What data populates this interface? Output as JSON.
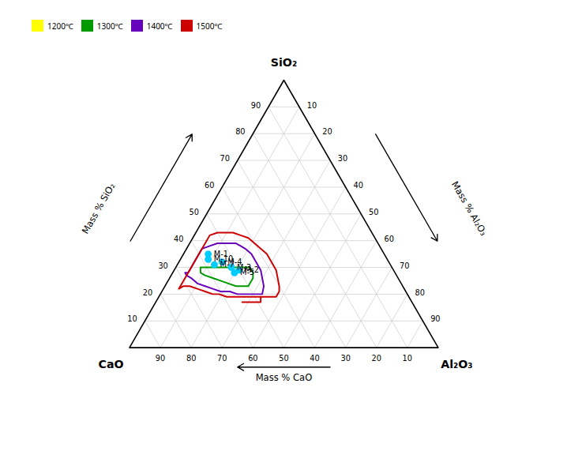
{
  "chart_data": {
    "type": "ternary",
    "components": [
      {
        "label": "CaO",
        "axis_label": "Mass % CaO",
        "lim": [
          0,
          100
        ],
        "ticks": [
          10,
          20,
          30,
          40,
          50,
          60,
          70,
          80,
          90
        ]
      },
      {
        "label": "Al₂O₃",
        "axis_label": "Mass % Al₂O₃",
        "lim": [
          0,
          100
        ],
        "ticks": [
          10,
          20,
          30,
          40,
          50,
          60,
          70,
          80,
          90
        ]
      },
      {
        "label": "SiO₂",
        "axis_label": "Mass % SiO₂",
        "lim": [
          0,
          100
        ],
        "ticks": [
          10,
          20,
          30,
          40,
          50,
          60,
          70,
          80,
          90
        ]
      }
    ],
    "grid": true,
    "legend": "top",
    "series": [
      {
        "name": "1200℃",
        "color": "#ffff00",
        "type": "line",
        "values": []
      },
      {
        "name": "1300℃",
        "color": "#009900",
        "type": "line",
        "values": [
          [
            62,
            8,
            30
          ],
          [
            60,
            10,
            30
          ],
          [
            57,
            13,
            30
          ],
          [
            54,
            16,
            30
          ],
          [
            52,
            18,
            30
          ],
          [
            50,
            20,
            30
          ],
          [
            48,
            22,
            30
          ],
          [
            47,
            23,
            30
          ],
          [
            46,
            24,
            30
          ],
          [
            46,
            26,
            28
          ],
          [
            47,
            27,
            26
          ],
          [
            48,
            27,
            25
          ],
          [
            49,
            27,
            24
          ],
          [
            50,
            27,
            23
          ],
          [
            52,
            25,
            23
          ],
          [
            54,
            23,
            23
          ],
          [
            56,
            20,
            24
          ],
          [
            58,
            17,
            25
          ],
          [
            60,
            14,
            26
          ],
          [
            62,
            11,
            27
          ],
          [
            63,
            9,
            28
          ],
          [
            62,
            8,
            30
          ]
        ]
      },
      {
        "name": "1400℃",
        "color": "#6600bb",
        "type": "line",
        "values": [
          [
            68,
            4,
            28
          ],
          [
            67,
            5,
            28
          ],
          [
            65,
            5,
            30
          ],
          [
            62,
            5,
            33
          ],
          [
            58,
            5,
            37
          ],
          [
            55,
            7,
            38
          ],
          [
            52,
            9,
            39
          ],
          [
            50,
            11,
            39
          ],
          [
            48,
            13,
            39
          ],
          [
            46,
            15,
            39
          ],
          [
            45,
            17,
            38
          ],
          [
            44,
            19,
            37
          ],
          [
            43,
            22,
            35
          ],
          [
            43,
            25,
            32
          ],
          [
            43,
            28,
            29
          ],
          [
            44,
            30,
            26
          ],
          [
            45,
            32,
            23
          ],
          [
            47,
            33,
            20
          ],
          [
            49,
            31,
            20
          ],
          [
            51,
            29,
            20
          ],
          [
            53,
            27,
            20
          ],
          [
            55,
            25,
            20
          ],
          [
            57,
            22,
            21
          ],
          [
            60,
            19,
            21
          ],
          [
            62,
            16,
            22
          ],
          [
            64,
            13,
            23
          ],
          [
            66,
            10,
            24
          ],
          [
            67,
            7,
            26
          ],
          [
            68,
            5,
            27
          ],
          [
            68,
            4,
            28
          ]
        ]
      },
      {
        "name": "1500℃",
        "color": "#cc0000",
        "type": "line",
        "values": [
          [
            73,
            5,
            22
          ],
          [
            70,
            5,
            25
          ],
          [
            66,
            5,
            29
          ],
          [
            62,
            5,
            33
          ],
          [
            57,
            5,
            38
          ],
          [
            53,
            5,
            42
          ],
          [
            50,
            7,
            43
          ],
          [
            47,
            10,
            43
          ],
          [
            45,
            12,
            43
          ],
          [
            43,
            15,
            42
          ],
          [
            41,
            18,
            41
          ],
          [
            40,
            21,
            39
          ],
          [
            39,
            24,
            37
          ],
          [
            38,
            27,
            35
          ],
          [
            38,
            30,
            32
          ],
          [
            38,
            33,
            29
          ],
          [
            39,
            35,
            26
          ],
          [
            40,
            37,
            23
          ],
          [
            41,
            38,
            21
          ],
          [
            43,
            38,
            19
          ],
          [
            45,
            36,
            19
          ],
          [
            47,
            34,
            19
          ],
          [
            49,
            32,
            19
          ],
          [
            51,
            30,
            19
          ],
          [
            53,
            28,
            19
          ],
          [
            55,
            26,
            19
          ],
          [
            57,
            24,
            19
          ],
          [
            59,
            22,
            19
          ],
          [
            61,
            19,
            20
          ],
          [
            63,
            17,
            20
          ],
          [
            65,
            14,
            21
          ],
          [
            67,
            11,
            22
          ],
          [
            69,
            8,
            23
          ],
          [
            71,
            6,
            23
          ],
          [
            73,
            5,
            22
          ],
          null,
          [
            55,
            28,
            17
          ],
          [
            53,
            30,
            17
          ],
          [
            51,
            32,
            17
          ],
          [
            50,
            33,
            17
          ],
          [
            49,
            34,
            17
          ],
          [
            48,
            33,
            19
          ]
        ]
      }
    ],
    "points": {
      "type": "scatter",
      "marker": "circle",
      "color": "#00ccff",
      "labels": [
        "M-1",
        "M-2",
        "M-3",
        "M-4",
        "M-5",
        "M-7",
        "M-10"
      ],
      "values": [
        [
          57,
          8,
          35
        ],
        [
          50,
          21,
          29
        ],
        [
          52,
          18,
          30
        ],
        [
          54,
          14,
          32
        ],
        [
          52,
          20,
          28
        ],
        [
          57,
          12,
          31
        ],
        [
          58,
          9,
          33
        ]
      ]
    }
  }
}
